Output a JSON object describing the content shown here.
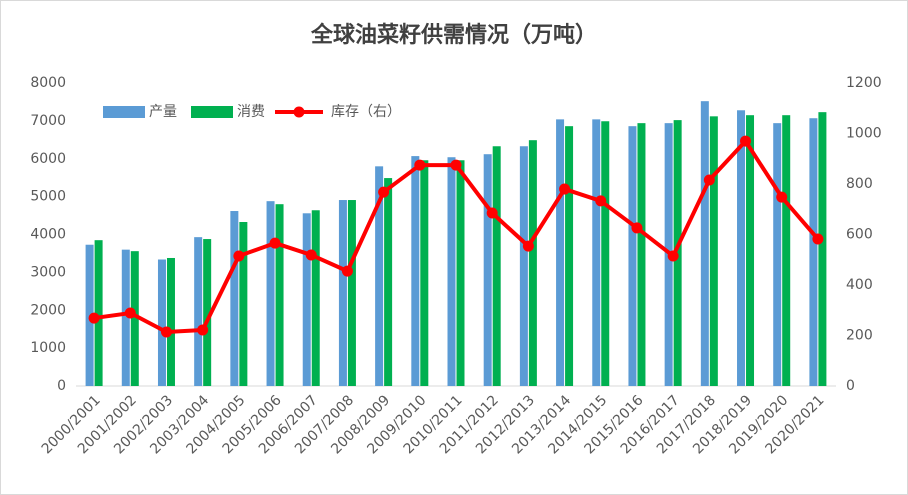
{
  "chart_data": {
    "type": "bar_line",
    "title": "全球油菜籽供需情况（万吨）",
    "categories": [
      "2000/2001",
      "2001/2002",
      "2002/2003",
      "2003/2004",
      "2004/2005",
      "2005/2006",
      "2006/2007",
      "2007/2008",
      "2008/2009",
      "2009/2010",
      "2010/2011",
      "2011/2012",
      "2012/2013",
      "2013/2014",
      "2014/2015",
      "2015/2016",
      "2016/2017",
      "2017/2018",
      "2018/2019",
      "2019/2020",
      "2020/2021"
    ],
    "series": [
      {
        "name": "产量",
        "type": "bar",
        "color": "#5b9bd5",
        "values": [
          3730,
          3600,
          3340,
          3930,
          4620,
          4880,
          4560,
          4910,
          5800,
          6070,
          6040,
          6120,
          6330,
          7040,
          7040,
          6860,
          6940,
          7520,
          7280,
          6940,
          7070
        ]
      },
      {
        "name": "消费",
        "type": "bar",
        "color": "#00b050",
        "values": [
          3850,
          3560,
          3380,
          3880,
          4330,
          4800,
          4640,
          4910,
          5490,
          5960,
          5960,
          6330,
          6490,
          6860,
          6990,
          6940,
          7020,
          7120,
          7150,
          7150,
          7230
        ]
      },
      {
        "name": "库存（右）",
        "type": "line",
        "axis": "y2",
        "color": "#ff0000",
        "values": [
          269,
          289,
          214,
          222,
          515,
          566,
          519,
          455,
          768,
          875,
          875,
          685,
          554,
          780,
          733,
          626,
          515,
          816,
          970,
          748,
          582
        ]
      }
    ],
    "ylim": [
      0,
      8000
    ],
    "yticks": [
      0,
      1000,
      2000,
      3000,
      4000,
      5000,
      6000,
      7000,
      8000
    ],
    "y2lim": [
      0,
      1200
    ],
    "y2ticks": [
      0,
      200,
      400,
      600,
      800,
      1000,
      1200
    ]
  }
}
